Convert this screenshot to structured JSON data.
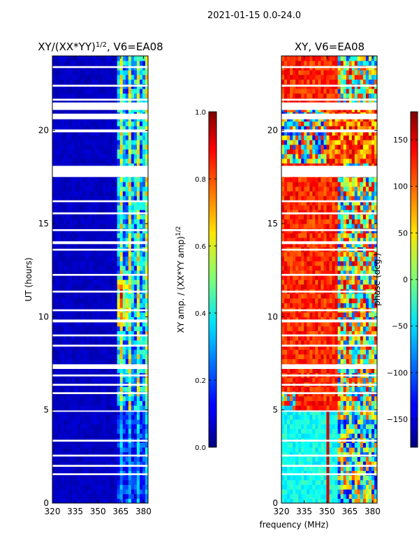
{
  "figure": {
    "suptitle": "2021-01-15 0.0-24.0",
    "shared_xlabel": "frequency (MHz)"
  },
  "chart_data": [
    {
      "type": "heatmap",
      "title": "XY/(XX*YY)",
      "title_sup": "1/2",
      "title_suffix": ", V6=EA08",
      "xlabel": "",
      "ylabel": "UT (hours)",
      "xlim": [
        320,
        383
      ],
      "ylim": [
        0,
        24
      ],
      "xticks": [
        320,
        335,
        350,
        365,
        380
      ],
      "yticks": [
        0,
        5,
        10,
        15,
        20
      ],
      "colorbar": {
        "label": "XY amp. / (XX*YY amp)",
        "label_sup": "1/2",
        "range": [
          0.0,
          1.0
        ],
        "ticks": [
          "0.0",
          "0.2",
          "0.4",
          "0.6",
          "0.8",
          "1.0"
        ],
        "colormap": "jet"
      },
      "flagged_time_bands_hours": [
        [
          23.35,
          23.45
        ],
        [
          22.35,
          22.45
        ],
        [
          21.6,
          21.7
        ],
        [
          21.1,
          21.5
        ],
        [
          20.6,
          20.9
        ],
        [
          19.9,
          20.05
        ],
        [
          17.5,
          18.1
        ],
        [
          16.15,
          16.25
        ],
        [
          15.5,
          15.6
        ],
        [
          14.6,
          14.7
        ],
        [
          13.9,
          14.05
        ],
        [
          13.55,
          13.65
        ],
        [
          12.2,
          12.3
        ],
        [
          11.3,
          11.4
        ],
        [
          10.3,
          10.4
        ],
        [
          9.7,
          9.85
        ],
        [
          8.95,
          9.05
        ],
        [
          8.4,
          8.5
        ],
        [
          7.2,
          7.45
        ],
        [
          6.8,
          6.9
        ],
        [
          6.3,
          6.4
        ],
        [
          5.85,
          5.95
        ],
        [
          4.9,
          4.97
        ],
        [
          3.3,
          3.4
        ],
        [
          2.5,
          2.6
        ],
        [
          1.95,
          2.05
        ],
        [
          1.5,
          1.6
        ]
      ],
      "notes": "Normalized cross-correlation amplitude: near 0 (dark blue) below ~362 MHz; strong RFI-like features 0.3-0.8 between ~362-383 MHz."
    },
    {
      "type": "heatmap",
      "title": "XY, V6=EA08",
      "xlabel": "",
      "ylabel": "",
      "xlim": [
        320,
        383
      ],
      "ylim": [
        0,
        24
      ],
      "xticks": [
        320,
        335,
        350,
        365,
        380
      ],
      "yticks": [
        0,
        5,
        10,
        15,
        20
      ],
      "colorbar": {
        "label": "phase (deg.)",
        "range": [
          -180,
          180
        ],
        "ticks": [
          "150",
          "100",
          "50",
          "0",
          "−50",
          "−100",
          "−150"
        ],
        "colormap": "jet"
      },
      "flagged_time_bands_hours": [
        [
          23.35,
          23.45
        ],
        [
          22.35,
          22.45
        ],
        [
          21.6,
          21.7
        ],
        [
          21.1,
          21.5
        ],
        [
          20.6,
          20.9
        ],
        [
          19.9,
          20.05
        ],
        [
          17.5,
          18.1
        ],
        [
          16.15,
          16.25
        ],
        [
          15.5,
          15.6
        ],
        [
          14.6,
          14.7
        ],
        [
          13.9,
          14.05
        ],
        [
          13.55,
          13.65
        ],
        [
          12.2,
          12.3
        ],
        [
          11.3,
          11.4
        ],
        [
          10.3,
          10.4
        ],
        [
          9.7,
          9.85
        ],
        [
          8.95,
          9.05
        ],
        [
          8.4,
          8.5
        ],
        [
          7.2,
          7.45
        ],
        [
          6.8,
          6.9
        ],
        [
          6.3,
          6.4
        ],
        [
          5.85,
          5.95
        ],
        [
          4.9,
          4.97
        ],
        [
          3.3,
          3.4
        ],
        [
          2.5,
          2.6
        ],
        [
          1.95,
          2.05
        ],
        [
          1.5,
          1.6
        ]
      ],
      "notes": "XY phase: mostly ~+100 to +150 deg (orange/red) from 5-24 h; ~-20 to -80 deg (cyan/light blue) before ~4.9 h; mixed phases above ~355 MHz."
    }
  ]
}
